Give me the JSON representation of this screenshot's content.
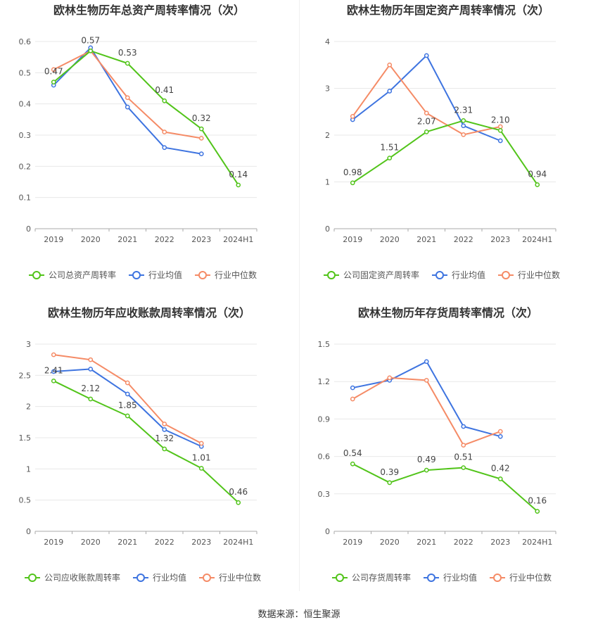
{
  "source_text": "数据来源：恒生聚源",
  "colors": {
    "company": "#52c41a",
    "avg": "#3e74e0",
    "median": "#f58b66",
    "grid": "#e8e8e8",
    "axis": "#aaaaaa",
    "text": "#555555",
    "title": "#333333"
  },
  "chart_data": [
    {
      "type": "line",
      "title": "欧林生物历年总资产周转率情况（次）",
      "categories": [
        "2019",
        "2020",
        "2021",
        "2022",
        "2023",
        "2024H1"
      ],
      "ylim": [
        0,
        0.6
      ],
      "yticks": [
        "0",
        "0.1",
        "0.2",
        "0.3",
        "0.4",
        "0.5",
        "0.6"
      ],
      "grid": true,
      "legend_position": "bottom",
      "series": [
        {
          "name": "公司总资产周转率",
          "role": "company",
          "values": [
            0.47,
            0.57,
            0.53,
            0.41,
            0.32,
            0.14
          ],
          "labels": [
            "0.47",
            "0.57",
            "0.53",
            "0.41",
            "0.32",
            "0.14"
          ]
        },
        {
          "name": "行业均值",
          "role": "avg",
          "values": [
            0.46,
            0.58,
            0.39,
            0.26,
            0.24,
            null
          ]
        },
        {
          "name": "行业中位数",
          "role": "median",
          "values": [
            0.51,
            0.57,
            0.42,
            0.31,
            0.29,
            null
          ]
        }
      ]
    },
    {
      "type": "line",
      "title": "欧林生物历年固定资产周转率情况（次）",
      "categories": [
        "2019",
        "2020",
        "2021",
        "2022",
        "2023",
        "2024H1"
      ],
      "ylim": [
        0,
        4
      ],
      "yticks": [
        "0",
        "1",
        "2",
        "3",
        "4"
      ],
      "grid": true,
      "legend_position": "bottom",
      "series": [
        {
          "name": "公司固定资产周转率",
          "role": "company",
          "values": [
            0.98,
            1.51,
            2.07,
            2.31,
            2.1,
            0.94
          ],
          "labels": [
            "0.98",
            "1.51",
            "2.07",
            "2.31",
            "2.10",
            "0.94"
          ]
        },
        {
          "name": "行业均值",
          "role": "avg",
          "values": [
            2.33,
            2.94,
            3.7,
            2.2,
            1.88,
            null
          ]
        },
        {
          "name": "行业中位数",
          "role": "median",
          "values": [
            2.4,
            3.5,
            2.47,
            2.01,
            2.18,
            null
          ]
        }
      ]
    },
    {
      "type": "line",
      "title": "欧林生物历年应收账款周转率情况（次）",
      "categories": [
        "2019",
        "2020",
        "2021",
        "2022",
        "2023",
        "2024H1"
      ],
      "ylim": [
        0,
        3
      ],
      "yticks": [
        "0",
        "0.5",
        "1",
        "1.5",
        "2",
        "2.5",
        "3"
      ],
      "grid": true,
      "legend_position": "bottom",
      "series": [
        {
          "name": "公司应收账款周转率",
          "role": "company",
          "values": [
            2.41,
            2.12,
            1.85,
            1.32,
            1.01,
            0.46
          ],
          "labels": [
            "2.41",
            "2.12",
            "1.85",
            "1.32",
            "1.01",
            "0.46"
          ]
        },
        {
          "name": "行业均值",
          "role": "avg",
          "values": [
            2.56,
            2.6,
            2.2,
            1.63,
            1.36,
            null
          ]
        },
        {
          "name": "行业中位数",
          "role": "median",
          "values": [
            2.83,
            2.75,
            2.38,
            1.72,
            1.41,
            null
          ]
        }
      ]
    },
    {
      "type": "line",
      "title": "欧林生物历年存货周转率情况（次）",
      "categories": [
        "2019",
        "2020",
        "2021",
        "2022",
        "2023",
        "2024H1"
      ],
      "ylim": [
        0,
        1.5
      ],
      "yticks": [
        "0",
        "0.3",
        "0.6",
        "0.9",
        "1.2",
        "1.5"
      ],
      "grid": true,
      "legend_position": "bottom",
      "series": [
        {
          "name": "公司存货周转率",
          "role": "company",
          "values": [
            0.54,
            0.39,
            0.49,
            0.51,
            0.42,
            0.16
          ],
          "labels": [
            "0.54",
            "0.39",
            "0.49",
            "0.51",
            "0.42",
            "0.16"
          ]
        },
        {
          "name": "行业均值",
          "role": "avg",
          "values": [
            1.15,
            1.21,
            1.36,
            0.84,
            0.76,
            null
          ]
        },
        {
          "name": "行业中位数",
          "role": "median",
          "values": [
            1.06,
            1.23,
            1.21,
            0.69,
            0.8,
            null
          ]
        }
      ]
    }
  ]
}
